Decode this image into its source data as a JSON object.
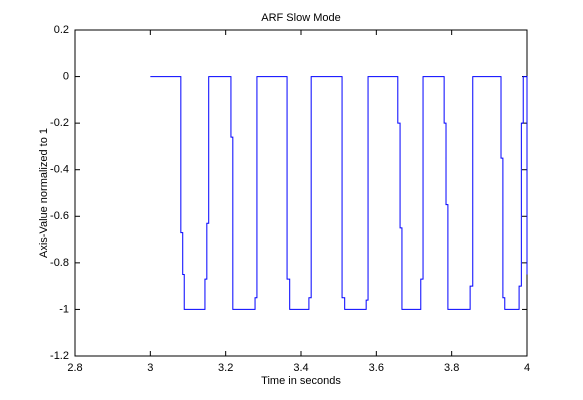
{
  "chart_data": {
    "type": "line",
    "title": "ARF Slow Mode",
    "xlabel": "Time in seconds",
    "ylabel": "Axis-Value normalized to 1",
    "xlim": [
      2.8,
      4
    ],
    "ylim": [
      -1.2,
      0.2
    ],
    "xticks": [
      2.8,
      3,
      3.2,
      3.4,
      3.6,
      3.8,
      4
    ],
    "yticks": [
      -1.2,
      -1,
      -0.8,
      -0.6,
      -0.4,
      -0.2,
      0,
      0.2
    ],
    "grid": false,
    "series": [
      {
        "color": "#0000ff",
        "x": [
          3.0,
          3.081,
          3.081,
          3.086,
          3.086,
          3.09,
          3.09,
          3.145,
          3.145,
          3.15,
          3.15,
          3.155,
          3.155,
          3.214,
          3.214,
          3.219,
          3.219,
          3.278,
          3.278,
          3.283,
          3.283,
          3.363,
          3.363,
          3.37,
          3.37,
          3.421,
          3.421,
          3.427,
          3.427,
          3.509,
          3.509,
          3.516,
          3.516,
          3.573,
          3.573,
          3.578,
          3.578,
          3.657,
          3.657,
          3.663,
          3.663,
          3.668,
          3.668,
          3.718,
          3.718,
          3.724,
          3.724,
          3.78,
          3.78,
          3.785,
          3.785,
          3.79,
          3.79,
          3.849,
          3.849,
          3.856,
          3.856,
          3.931,
          3.931,
          3.936,
          3.936,
          3.941,
          3.941,
          3.979,
          3.979,
          3.985,
          3.985,
          3.99,
          3.99,
          4.0,
          4.0
        ],
        "values": [
          0,
          0,
          -0.67,
          -0.67,
          -0.85,
          -0.85,
          -1,
          -1,
          -0.87,
          -0.87,
          -0.63,
          -0.63,
          0,
          0,
          -0.26,
          -0.26,
          -1,
          -1,
          -0.95,
          -0.95,
          0,
          0,
          -0.87,
          -0.87,
          -1,
          -1,
          -0.95,
          -0.95,
          0,
          0,
          -0.95,
          -0.95,
          -1,
          -1,
          -0.96,
          -0.96,
          0,
          0,
          -0.2,
          -0.2,
          -0.65,
          -0.65,
          -1,
          -1,
          -0.87,
          -0.87,
          0,
          0,
          -0.2,
          -0.2,
          -0.55,
          -0.55,
          -1,
          -1,
          -0.9,
          -0.9,
          0,
          0,
          -0.35,
          -0.35,
          -0.95,
          -0.95,
          -1,
          -1,
          -0.9,
          -0.9,
          -0.2,
          -0.2,
          0,
          0,
          -0.85
        ]
      }
    ]
  }
}
